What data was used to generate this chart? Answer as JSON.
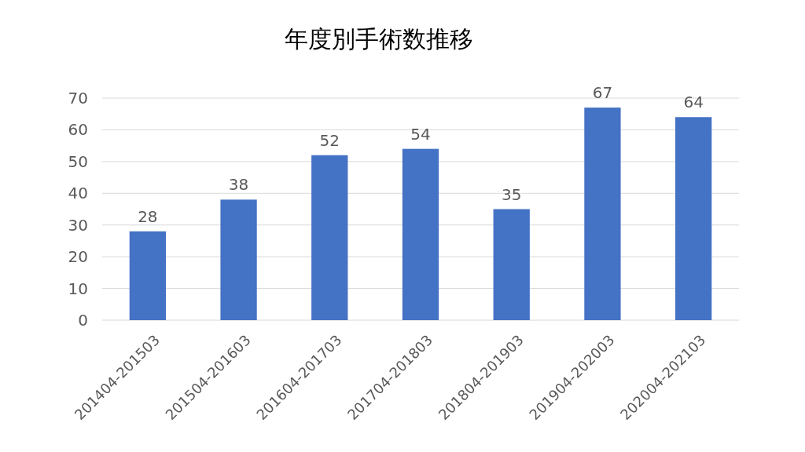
{
  "chart_data": {
    "type": "bar",
    "title": "年度別手術数推移",
    "categories": [
      "201404-201503",
      "201504-201603",
      "201604-201703",
      "201704-201803",
      "201804-201903",
      "201904-202003",
      "202004-202103"
    ],
    "values": [
      28,
      38,
      52,
      54,
      35,
      67,
      64
    ],
    "color": "#4472c4",
    "ylim": [
      0,
      70
    ],
    "yticks": [
      0,
      10,
      20,
      30,
      40,
      50,
      60,
      70
    ],
    "grid": true,
    "data_labels": true
  }
}
